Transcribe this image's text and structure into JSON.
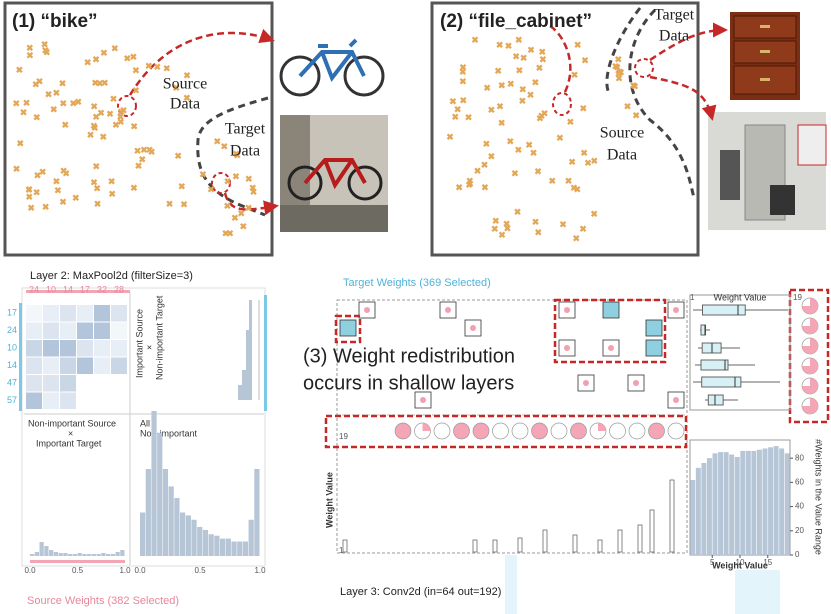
{
  "panel1": {
    "label": "(1) “bike”",
    "source": [
      "Source",
      "Data"
    ],
    "target": [
      "Target",
      "Data"
    ]
  },
  "panel2": {
    "label": "(2) “file_cabinet”",
    "target": [
      "Target",
      "Data"
    ],
    "source": [
      "Source",
      "Data"
    ]
  },
  "layer2": {
    "title": "Layer 2: MaxPool2d (filterSize=3)",
    "columns": [
      "24",
      "10",
      "14",
      "17",
      "32",
      "28"
    ],
    "rows": [
      "17",
      "24",
      "10",
      "14",
      "47",
      "57"
    ],
    "top_right": [
      "Important Source",
      "×",
      "Non-important Target"
    ],
    "bottom_left": [
      "Non-important Source",
      "×",
      "Important Target"
    ],
    "bottom_right": [
      "All",
      "Non-important"
    ],
    "x_ticks": [
      "0.0",
      "0.5",
      "1.0"
    ],
    "hist_left": [
      2,
      4,
      14,
      10,
      6,
      4,
      3,
      3,
      2,
      2,
      3,
      2,
      2,
      2,
      2,
      3,
      2,
      2,
      4,
      6
    ],
    "hist_right": [
      30,
      60,
      100,
      85,
      60,
      48,
      40,
      30,
      28,
      25,
      20,
      18,
      15,
      14,
      12,
      12,
      10,
      10,
      10,
      25,
      60
    ]
  },
  "source_weights": "Source Weights (382 Selected)",
  "target_weights": "Target Weights (369 Selected)",
  "annotation": [
    "(3) Weight redistribution",
    "occurs in shallow layers"
  ],
  "range_low": "1",
  "range_high": "19",
  "weight_value": "Weight Value",
  "histogram": {
    "type": "histogram",
    "bins": [
      1,
      2,
      3,
      4,
      5,
      6,
      7,
      8,
      9,
      10,
      11,
      12,
      13,
      14,
      15,
      16,
      17,
      18,
      19
    ],
    "values": [
      62,
      72,
      76,
      80,
      84,
      85,
      85,
      83,
      81,
      86,
      86,
      86,
      87,
      88,
      89,
      90,
      88,
      84
    ],
    "color": "#b7c6d6",
    "xlim": [
      1,
      19
    ],
    "xticks": [
      5,
      10,
      15
    ],
    "ylim": [
      0,
      95
    ],
    "yticks": [
      0,
      20,
      40,
      60,
      80
    ],
    "xlabel": "Weight Value",
    "ylabel": "#Weights in the Value Range"
  },
  "layer3": "Layer 3: Conv2d (in=64 out=192)"
}
